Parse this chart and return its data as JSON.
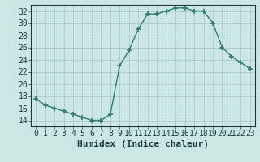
{
  "x": [
    0,
    1,
    2,
    3,
    4,
    5,
    6,
    7,
    8,
    9,
    10,
    11,
    12,
    13,
    14,
    15,
    16,
    17,
    18,
    19,
    20,
    21,
    22,
    23
  ],
  "y": [
    17.5,
    16.5,
    16.0,
    15.5,
    15.0,
    14.5,
    14.0,
    14.0,
    15.0,
    23.0,
    25.5,
    29.0,
    31.5,
    31.5,
    32.0,
    32.5,
    32.5,
    32.0,
    32.0,
    30.0,
    26.0,
    24.5,
    23.5,
    22.5
  ],
  "line_color": "#2e7d6e",
  "marker": "+",
  "bg_color": "#cce5e5",
  "grid_color": "#aacccc",
  "xlabel": "Humidex (Indice chaleur)",
  "xlim": [
    -0.5,
    23.5
  ],
  "ylim": [
    13,
    33
  ],
  "yticks": [
    14,
    16,
    18,
    20,
    22,
    24,
    26,
    28,
    30,
    32
  ],
  "xticks": [
    0,
    1,
    2,
    3,
    4,
    5,
    6,
    7,
    8,
    9,
    10,
    11,
    12,
    13,
    14,
    15,
    16,
    17,
    18,
    19,
    20,
    21,
    22,
    23
  ],
  "font_color": "#1a3a3a",
  "fontsize": 7.0,
  "xlabel_fontsize": 8.0
}
